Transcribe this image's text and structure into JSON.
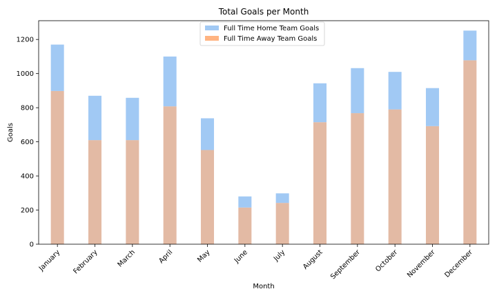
{
  "chart_data": {
    "type": "bar",
    "title": "Total Goals per Month",
    "xlabel": "Month",
    "ylabel": "Goals",
    "ylim": [
      0,
      1310
    ],
    "yticks": [
      0,
      200,
      400,
      600,
      800,
      1000,
      1200
    ],
    "categories": [
      "January",
      "February",
      "March",
      "April",
      "May",
      "June",
      "July",
      "August",
      "September",
      "October",
      "November",
      "December"
    ],
    "series": [
      {
        "name": "Full Time Home Team Goals",
        "color": "#a1c9f4",
        "values": [
          1170,
          870,
          858,
          1100,
          738,
          280,
          298,
          943,
          1032,
          1010,
          915,
          1252
        ]
      },
      {
        "name": "Full Time Away Team Goals",
        "color": "#ffb482",
        "values": [
          898,
          610,
          610,
          808,
          552,
          215,
          242,
          715,
          768,
          790,
          692,
          1078
        ]
      }
    ],
    "overlap_color": "#e3baa4",
    "legend_position": "top-center",
    "grid": false
  }
}
